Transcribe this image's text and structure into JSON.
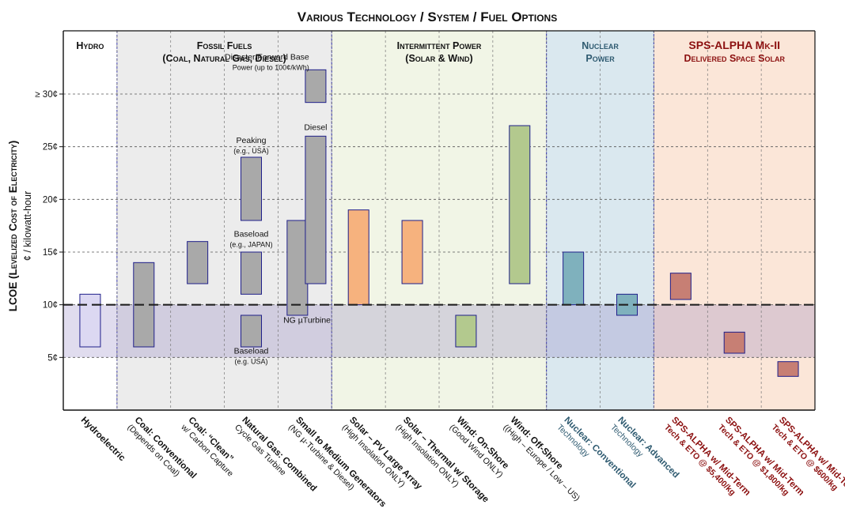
{
  "chart_data": {
    "type": "bar",
    "subtype": "floating-range",
    "title": "Various Technology / System / Fuel Options",
    "ylabel_line1": "LCOE (Levelized Cost of Electricity)",
    "ylabel_line2": "¢ / kilowatt-hour",
    "ylim": [
      0,
      36
    ],
    "y_ticks": [
      {
        "value": 5,
        "label": "5¢"
      },
      {
        "value": 10,
        "label": "10¢"
      },
      {
        "value": 15,
        "label": "15¢"
      },
      {
        "value": 20,
        "label": "20¢"
      },
      {
        "value": 25,
        "label": "25¢"
      },
      {
        "value": 30,
        "label": "≥ 30¢"
      }
    ],
    "grid": true,
    "reference_line": {
      "value": 10,
      "style": "dashed"
    },
    "reference_band": {
      "from": 5,
      "to": 10
    },
    "groups": [
      {
        "title_lines": [
          "Hydro"
        ],
        "title_color": "#111111",
        "fill": "#ffffff",
        "from": 0,
        "to": 1
      },
      {
        "title_lines": [
          "Fossil Fuels",
          "(Coal, Natural Gas, Diesel)"
        ],
        "title_color": "#111111",
        "fill": "#ececec",
        "from": 1,
        "to": 5
      },
      {
        "title_lines": [
          "Intermittent Power",
          "(Solar & Wind)"
        ],
        "title_color": "#111111",
        "fill": "#f1f5e6",
        "from": 5,
        "to": 9
      },
      {
        "title_lines": [
          "Nuclear",
          "Power"
        ],
        "title_color": "#2e5a70",
        "fill": "#dae8ef",
        "from": 9,
        "to": 11
      },
      {
        "title_lines": [
          "SPS-ALPHA Mk-II",
          "Delivered Space Solar"
        ],
        "title_color": "#8c1010",
        "fill": "#fbe6d8",
        "from": 11,
        "to": 14
      }
    ],
    "categories": [
      {
        "label": "Hydroelectric",
        "sub": "",
        "color": "#111111"
      },
      {
        "label": "Coal: Conventional",
        "sub": "(Depends on Coal)",
        "color": "#111111"
      },
      {
        "label": "Coal: “Clean”",
        "sub": "w/ Carbon Capture",
        "color": "#111111"
      },
      {
        "label": "Natural Gas: Combined",
        "sub": "Cycle Gas Turbine",
        "color": "#111111"
      },
      {
        "label": "Small to Medium Generators",
        "sub": "(NG µ-Turbine & Diesel)",
        "color": "#111111"
      },
      {
        "label": "Solar – PV Large Array",
        "sub": "(High Insolation ONLY)",
        "color": "#111111"
      },
      {
        "label": "Solar – Thermal w/ Storage",
        "sub": "(High Insolation ONLY)",
        "color": "#111111"
      },
      {
        "label": "Wind: On-Shore",
        "sub": "(Good Wind ONLY)",
        "color": "#111111"
      },
      {
        "label": "Wind: Off-Shore",
        "sub": "((High – Europe / Low – US)",
        "color": "#111111"
      },
      {
        "label": "Nuclear: Conventional",
        "sub": "Technology",
        "color": "#2e5a70"
      },
      {
        "label": "Nuclear: Advanced",
        "sub": "Technology",
        "color": "#2e5a70"
      },
      {
        "label": "SPS-ALPHA w/ Mid-Term",
        "sub": "Tech & ETO @ $5,400/kg",
        "color": "#8c1010"
      },
      {
        "label": "SPS-ALPHA w/ Mid-Term",
        "sub": "Tech & ETO @ $1,800/kg",
        "color": "#8c1010"
      },
      {
        "label": "SPS-ALPHA w/ Mid-Term",
        "sub": "Tech & ETO @ $600/kg",
        "color": "#8c1010"
      }
    ],
    "bars": [
      {
        "category": 0,
        "offset": 0,
        "low": 6,
        "high": 11,
        "color": "#dcd8f2"
      },
      {
        "category": 1,
        "offset": 0,
        "low": 6,
        "high": 14,
        "color": "#a9a9a9"
      },
      {
        "category": 2,
        "offset": 0,
        "low": 12,
        "high": 16,
        "color": "#a9a9a9"
      },
      {
        "category": 3,
        "offset": 0,
        "low": 18,
        "high": 24,
        "color": "#a9a9a9"
      },
      {
        "category": 3,
        "offset": 0,
        "low": 11,
        "high": 15,
        "color": "#a9a9a9"
      },
      {
        "category": 3,
        "offset": 0,
        "low": 6,
        "high": 9,
        "color": "#a9a9a9"
      },
      {
        "category": 4,
        "offset": -0.14,
        "low": 9,
        "high": 18,
        "color": "#a9a9a9"
      },
      {
        "category": 4,
        "offset": 0.2,
        "low": 12,
        "high": 26,
        "color": "#a9a9a9"
      },
      {
        "category": 4,
        "offset": 0.2,
        "low": 29.2,
        "high": 32.3,
        "color": "#a9a9a9"
      },
      {
        "category": 5,
        "offset": 0,
        "low": 10,
        "high": 19,
        "color": "#f6b27e"
      },
      {
        "category": 6,
        "offset": 0,
        "low": 12,
        "high": 18,
        "color": "#f6b27e"
      },
      {
        "category": 7,
        "offset": 0,
        "low": 6,
        "high": 9,
        "color": "#b3c98e"
      },
      {
        "category": 8,
        "offset": 0,
        "low": 12,
        "high": 27,
        "color": "#b3c98e"
      },
      {
        "category": 9,
        "offset": 0,
        "low": 10,
        "high": 15,
        "color": "#7fb1bd"
      },
      {
        "category": 10,
        "offset": 0,
        "low": 9,
        "high": 11,
        "color": "#7fb1bd"
      },
      {
        "category": 11,
        "offset": 0,
        "low": 10.5,
        "high": 13,
        "color": "#c77f74"
      },
      {
        "category": 12,
        "offset": 0,
        "low": 5.4,
        "high": 7.4,
        "color": "#c77f74"
      },
      {
        "category": 13,
        "offset": 0,
        "low": 3.2,
        "high": 4.6,
        "color": "#c77f74"
      }
    ],
    "annotations": [
      {
        "category": 4,
        "offset": 0.08,
        "y": 32.8,
        "lines": [
          "Disaster/Forward Base",
          "Power (up to 100¢/kWh)"
        ],
        "anchor": "end"
      },
      {
        "category": 4,
        "offset": 0.2,
        "y": 26.6,
        "lines": [
          "Diesel"
        ],
        "anchor": "middle"
      },
      {
        "category": 3,
        "offset": 0,
        "y": 24.9,
        "lines": [
          "Peaking",
          "(e.g., USA)"
        ],
        "anchor": "middle"
      },
      {
        "category": 3,
        "offset": 0,
        "y": 16.0,
        "lines": [
          "Baseload",
          "(e.g., JAPAN)"
        ],
        "anchor": "middle"
      },
      {
        "category": 3,
        "offset": 0,
        "y": 4.9,
        "lines": [
          "Baseload",
          "(e.g. USA)"
        ],
        "anchor": "middle"
      },
      {
        "category": 4,
        "offset": 0.04,
        "y": 8.3,
        "lines": [
          "NG µTurbine"
        ],
        "anchor": "middle"
      }
    ]
  }
}
